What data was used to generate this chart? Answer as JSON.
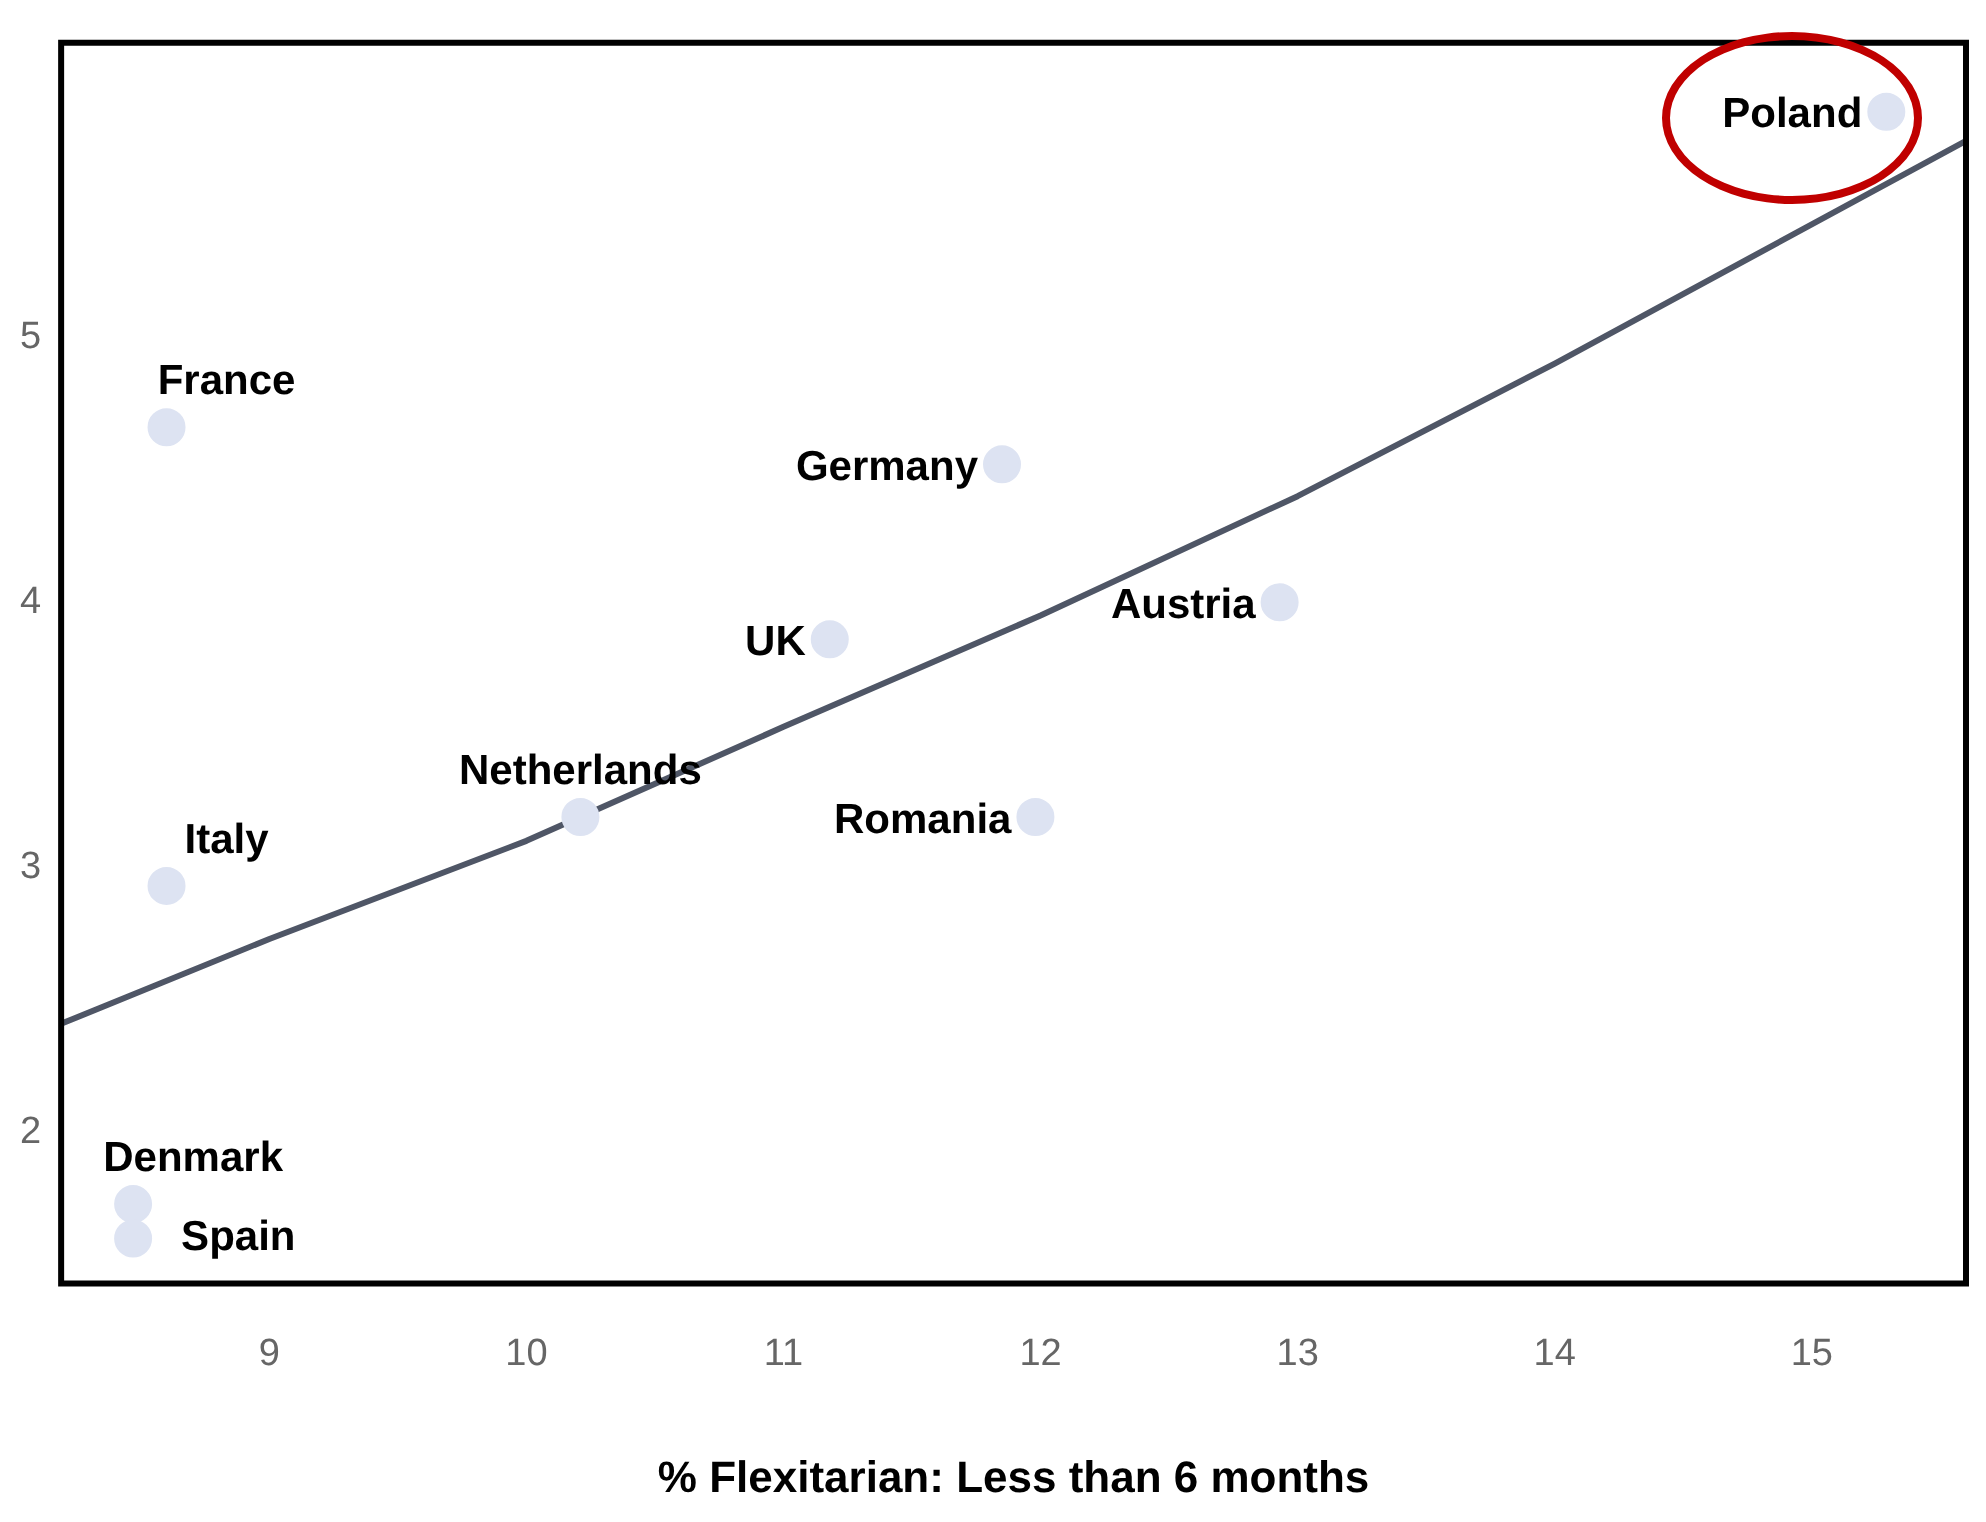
{
  "chart_data": {
    "type": "scatter",
    "xlabel": "% Flexitarian: Less than 6 months",
    "xlim": [
      8.19,
      15.6
    ],
    "xticks": [
      9,
      10,
      11,
      12,
      13,
      14,
      15
    ],
    "ylim": [
      1.43,
      6.11
    ],
    "yticks": [
      2,
      3,
      4,
      5
    ],
    "grid": false,
    "legend": false,
    "series": [
      {
        "color": "#dde3f2",
        "marker": "circle",
        "x": [
          8.6,
          8.6,
          8.47,
          8.47,
          10.21,
          11.18,
          11.85,
          11.98,
          12.93,
          15.29
        ],
        "values": [
          4.66,
          2.93,
          1.73,
          1.6,
          3.19,
          3.86,
          4.52,
          3.19,
          4.0,
          5.85
        ]
      },
      {
        "type": "line",
        "color": "#4f5666",
        "marker": "none",
        "line_style": "solid",
        "x": [
          8.19,
          9,
          10,
          11,
          12,
          13,
          14,
          15.6
        ],
        "values": [
          2.41,
          2.73,
          3.1,
          3.53,
          3.95,
          4.4,
          4.9,
          5.74
        ]
      }
    ],
    "annotations": [
      {
        "text": "France",
        "x": 8.6,
        "y": 4.66
      },
      {
        "text": "Italy",
        "x": 8.6,
        "y": 2.93
      },
      {
        "text": "Denmark",
        "x": 8.47,
        "y": 1.73
      },
      {
        "text": "Spain",
        "x": 8.47,
        "y": 1.6
      },
      {
        "text": "Netherlands",
        "x": 10.21,
        "y": 3.19
      },
      {
        "text": "UK",
        "x": 11.18,
        "y": 3.86
      },
      {
        "text": "Germany",
        "x": 11.85,
        "y": 4.52
      },
      {
        "text": "Romania",
        "x": 11.98,
        "y": 3.19
      },
      {
        "text": "Austria",
        "x": 12.93,
        "y": 4.0
      },
      {
        "text": "Poland",
        "x": 15.29,
        "y": 5.85
      }
    ]
  }
}
